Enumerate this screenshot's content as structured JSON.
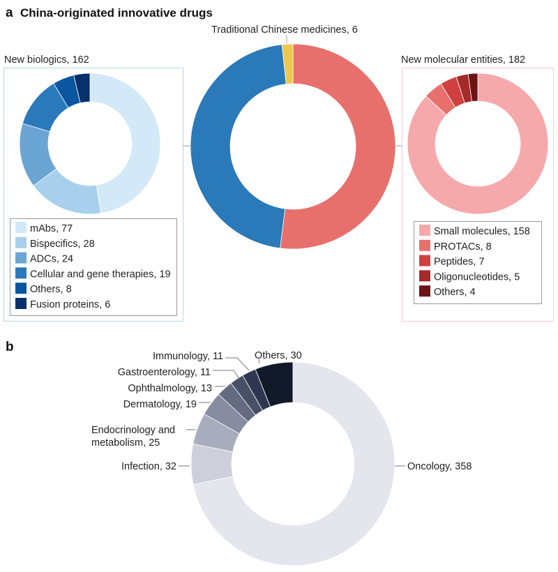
{
  "panel_a": {
    "letter": "a",
    "title": "China-originated innovative drugs"
  },
  "panel_b": {
    "letter": "b"
  },
  "chart_data": [
    {
      "type": "pie",
      "donut": true,
      "id": "main",
      "categories": [
        "New molecular entities",
        "New biologics",
        "Traditional Chinese medicines"
      ],
      "values": [
        182,
        162,
        6
      ],
      "labels": [
        "New molecular entities, 182",
        "New biologics, 162",
        "Traditional Chinese medicines, 6"
      ],
      "colors": [
        "#e8706c",
        "#2a79b8",
        "#ecc84e"
      ]
    },
    {
      "type": "pie",
      "donut": true,
      "id": "biologics",
      "title": "New biologics, 162",
      "categories": [
        "mAbs",
        "Bispecifics",
        "ADCs",
        "Cellular and gene therapies",
        "Others",
        "Fusion proteins"
      ],
      "values": [
        77,
        28,
        24,
        19,
        8,
        6
      ],
      "labels": [
        "mAbs, 77",
        "Bispecifics, 28",
        "ADCs, 24",
        "Cellular and gene therapies, 19",
        "Others, 8",
        "Fusion proteins, 6"
      ],
      "colors": [
        "#d3e9f7",
        "#a8d0ec",
        "#6aa5d4",
        "#2a7abb",
        "#0a56a0",
        "#08306b"
      ],
      "legend": "bottom"
    },
    {
      "type": "pie",
      "donut": true,
      "id": "nme",
      "title": "New molecular entities, 182",
      "categories": [
        "Small molecules",
        "PROTACs",
        "Peptides",
        "Oligonucleotides",
        "Others"
      ],
      "values": [
        158,
        8,
        7,
        5,
        4
      ],
      "labels": [
        "Small molecules, 158",
        "PROTACs, 8",
        "Peptides, 7",
        "Oligonucleotides, 5",
        "Others, 4"
      ],
      "colors": [
        "#f6a9ab",
        "#e8706c",
        "#d0403f",
        "#a52a2a",
        "#6e1414"
      ],
      "legend": "bottom"
    },
    {
      "type": "pie",
      "donut": true,
      "id": "areas",
      "categories": [
        "Oncology",
        "Infection",
        "Endocrinology and metabolism",
        "Dermatology",
        "Ophthalmology",
        "Gastroenterology",
        "Immunology",
        "Others"
      ],
      "values": [
        358,
        32,
        25,
        19,
        13,
        11,
        11,
        30
      ],
      "labels": [
        "Oncology, 358",
        "Infection, 32",
        "Endocrinology and",
        "Dermatology, 19",
        "Ophthalmology, 13",
        "Gastroenterology, 11",
        "Immunology, 11",
        "Others, 30"
      ],
      "label_line2": "metabolism, 25",
      "colors": [
        "#e3e6ed",
        "#cdd0da",
        "#a9acbd",
        "#888ca0",
        "#646a7f",
        "#475066",
        "#2d3850",
        "#121a2a"
      ]
    }
  ]
}
